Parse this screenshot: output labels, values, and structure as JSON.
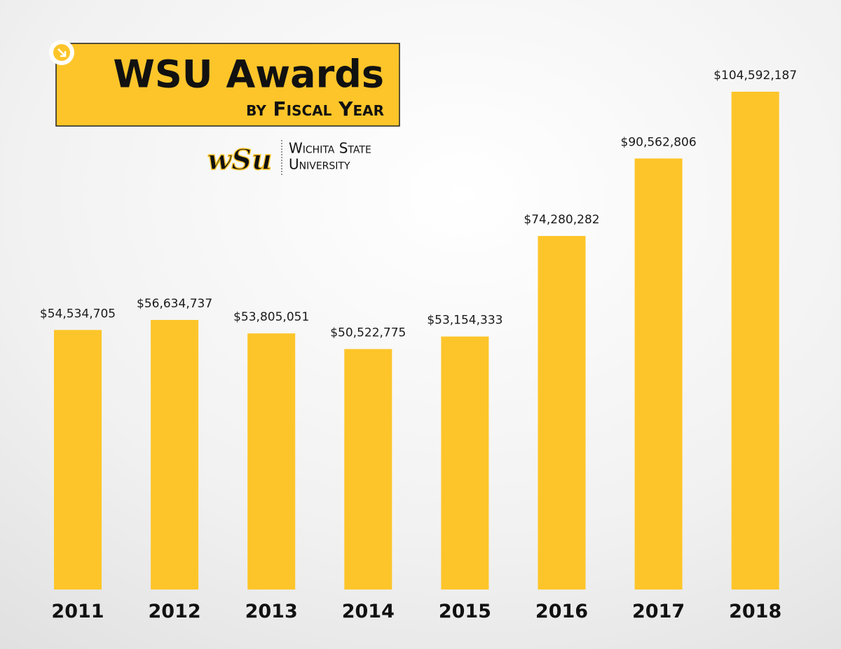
{
  "chart_data": {
    "type": "bar",
    "title": "WSU Awards",
    "subtitle": "by Fiscal Year",
    "logo": {
      "mark": "wSu",
      "lines": [
        "Wichita State",
        "University"
      ]
    },
    "categories": [
      "2011",
      "2012",
      "2013",
      "2014",
      "2015",
      "2016",
      "2017",
      "2018"
    ],
    "values": [
      54534705,
      56634737,
      53805051,
      50522775,
      53154333,
      74280282,
      90562806,
      104592187
    ],
    "value_labels": [
      "$54,534,705",
      "$56,634,737",
      "$53,805,051",
      "$50,522,775",
      "$53,154,333",
      "$74,280,282",
      "$90,562,806",
      "$104,592,187"
    ],
    "color": "#fdc52a"
  }
}
